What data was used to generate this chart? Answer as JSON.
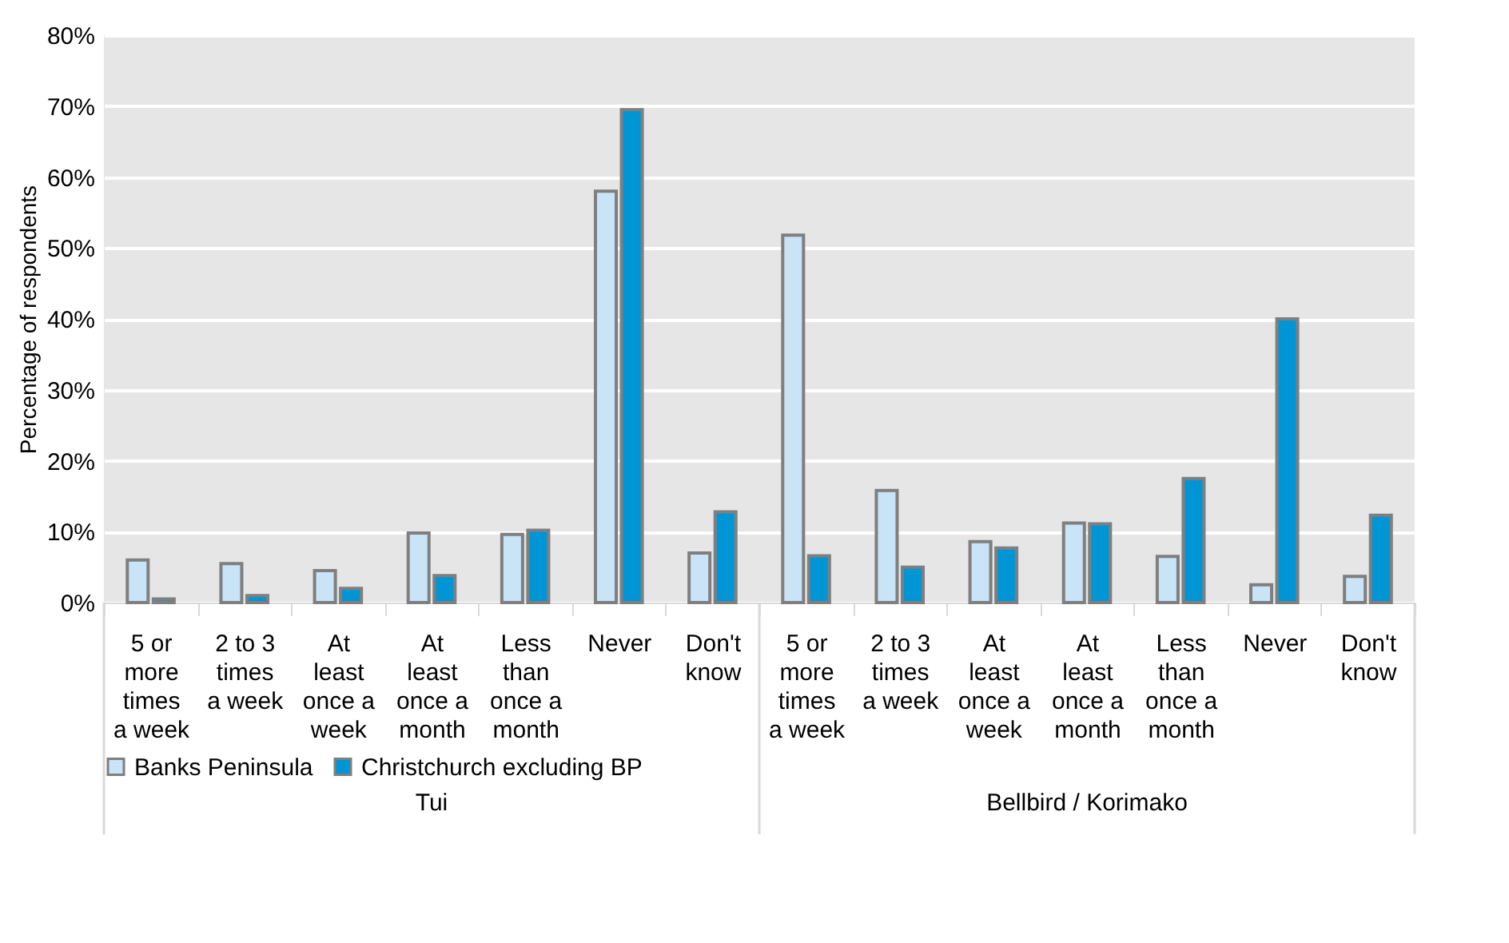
{
  "chart_data": {
    "type": "bar",
    "ylabel": "Percentage of respondents",
    "categories": [
      "5 or more times a week",
      "2 to 3 times a week",
      "At least once a week",
      "At least once a month",
      "Less than once a month",
      "Never",
      "Don't know",
      "5 or more times a week",
      "2 to 3 times a week",
      "At least once a week",
      "At least once a month",
      "Less than once a month",
      "Never",
      "Don't know"
    ],
    "series": [
      {
        "name": "Banks Peninsula",
        "color": "#c9e3f7",
        "values": [
          6,
          5.5,
          4.5,
          9.8,
          9.6,
          58,
          7,
          51.8,
          15.8,
          8.6,
          11.2,
          6.5,
          2.5,
          3.7
        ]
      },
      {
        "name": "Christchurch excluding BP",
        "color": "#0096d6",
        "values": [
          0.5,
          1,
          2,
          3.8,
          10.2,
          69.5,
          12.8,
          6.6,
          5,
          7.7,
          11.1,
          17.5,
          40,
          12.3
        ]
      }
    ],
    "annotations": [
      "Tui",
      "Bellbird / Korimako"
    ],
    "ylim": [
      0,
      80
    ],
    "yticks": [
      {
        "value": 0,
        "label": "0%"
      },
      {
        "value": 10,
        "label": "10%"
      },
      {
        "value": 20,
        "label": "20%"
      },
      {
        "value": 30,
        "label": "30%"
      },
      {
        "value": 40,
        "label": "40%"
      },
      {
        "value": 50,
        "label": "50%"
      },
      {
        "value": 60,
        "label": "60%"
      },
      {
        "value": 70,
        "label": "70%"
      },
      {
        "value": 80,
        "label": "80%"
      }
    ],
    "grid": "y",
    "legend": "bottom"
  }
}
